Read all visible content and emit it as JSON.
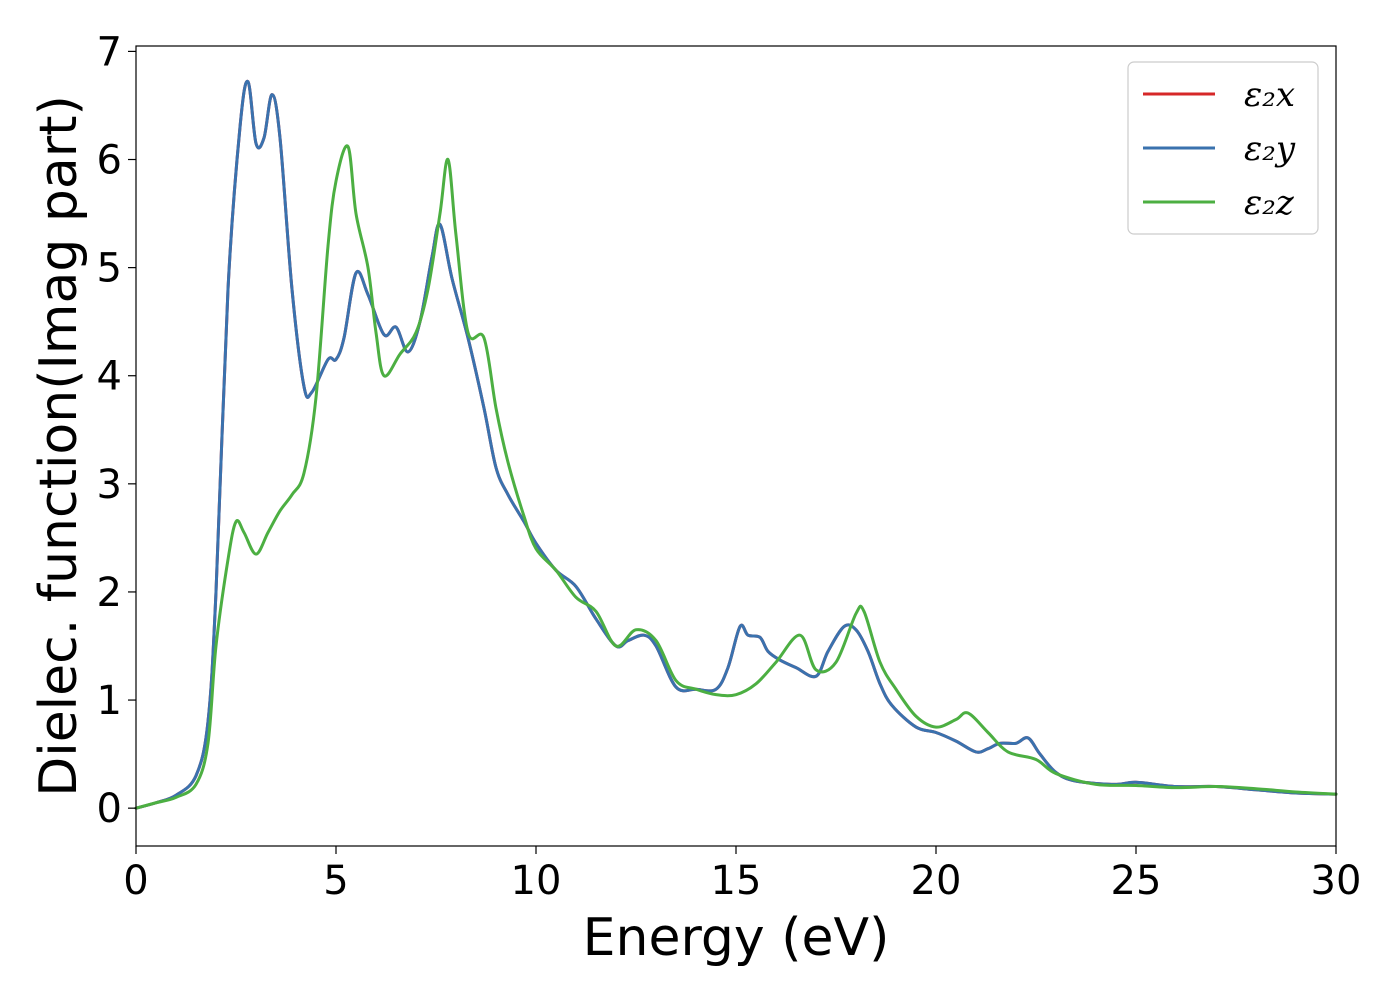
{
  "chart_data": {
    "type": "line",
    "xlabel": "Energy (eV)",
    "ylabel": "Dielec. function(Imag part)",
    "xlim": [
      0,
      30
    ],
    "ylim": [
      -0.35,
      7.05
    ],
    "xticks": [
      "0",
      "5",
      "10",
      "15",
      "20",
      "25",
      "30"
    ],
    "yticks": [
      "0",
      "1",
      "2",
      "3",
      "4",
      "5",
      "6",
      "7"
    ],
    "grid": false,
    "legend": "top-right",
    "series": [
      {
        "name": "ε₂x",
        "color": "#d62728",
        "x": [
          0,
          0.5,
          1.0,
          1.5,
          1.8,
          2.0,
          2.3,
          2.6,
          2.8,
          3.0,
          3.2,
          3.4,
          3.6,
          3.9,
          4.2,
          4.4,
          4.8,
          5.0,
          5.2,
          5.5,
          5.8,
          6.2,
          6.5,
          6.8,
          7.1,
          7.4,
          7.6,
          7.9,
          8.3,
          8.7,
          9.0,
          9.3,
          9.7,
          10.0,
          10.5,
          11.0,
          11.5,
          12.0,
          12.3,
          12.7,
          13.0,
          13.5,
          14.0,
          14.5,
          14.8,
          15.1,
          15.3,
          15.6,
          15.8,
          16.1,
          16.5,
          17.0,
          17.3,
          17.7,
          18.0,
          18.3,
          18.6,
          18.9,
          19.5,
          20.0,
          20.5,
          21.0,
          21.3,
          21.6,
          22.0,
          22.3,
          22.6,
          23.0,
          23.5,
          24.5,
          25.0,
          26.0,
          27.0,
          28.0,
          29.0,
          30.0
        ],
        "values": [
          0.0,
          0.05,
          0.12,
          0.3,
          0.8,
          2.0,
          4.8,
          6.3,
          6.72,
          6.15,
          6.2,
          6.6,
          6.2,
          4.8,
          3.9,
          3.85,
          4.15,
          4.15,
          4.35,
          4.95,
          4.75,
          4.38,
          4.45,
          4.22,
          4.5,
          5.1,
          5.4,
          4.9,
          4.35,
          3.7,
          3.15,
          2.9,
          2.65,
          2.45,
          2.2,
          2.05,
          1.75,
          1.5,
          1.55,
          1.6,
          1.5,
          1.12,
          1.1,
          1.1,
          1.3,
          1.68,
          1.6,
          1.58,
          1.45,
          1.37,
          1.3,
          1.22,
          1.45,
          1.68,
          1.65,
          1.45,
          1.15,
          0.95,
          0.75,
          0.7,
          0.62,
          0.52,
          0.55,
          0.6,
          0.6,
          0.65,
          0.5,
          0.33,
          0.25,
          0.22,
          0.24,
          0.2,
          0.2,
          0.17,
          0.14,
          0.13
        ]
      },
      {
        "name": "ε₂y",
        "color": "#3a72ae",
        "x": [
          0,
          0.5,
          1.0,
          1.5,
          1.8,
          2.0,
          2.3,
          2.6,
          2.8,
          3.0,
          3.2,
          3.4,
          3.6,
          3.9,
          4.2,
          4.4,
          4.8,
          5.0,
          5.2,
          5.5,
          5.8,
          6.2,
          6.5,
          6.8,
          7.1,
          7.4,
          7.6,
          7.9,
          8.3,
          8.7,
          9.0,
          9.3,
          9.7,
          10.0,
          10.5,
          11.0,
          11.5,
          12.0,
          12.3,
          12.7,
          13.0,
          13.5,
          14.0,
          14.5,
          14.8,
          15.1,
          15.3,
          15.6,
          15.8,
          16.1,
          16.5,
          17.0,
          17.3,
          17.7,
          18.0,
          18.3,
          18.6,
          18.9,
          19.5,
          20.0,
          20.5,
          21.0,
          21.3,
          21.6,
          22.0,
          22.3,
          22.6,
          23.0,
          23.5,
          24.5,
          25.0,
          26.0,
          27.0,
          28.0,
          29.0,
          30.0
        ],
        "values": [
          0.0,
          0.05,
          0.12,
          0.3,
          0.8,
          2.0,
          4.8,
          6.3,
          6.72,
          6.15,
          6.2,
          6.6,
          6.2,
          4.8,
          3.9,
          3.85,
          4.15,
          4.15,
          4.35,
          4.95,
          4.75,
          4.38,
          4.45,
          4.22,
          4.5,
          5.1,
          5.4,
          4.9,
          4.35,
          3.7,
          3.15,
          2.9,
          2.65,
          2.45,
          2.2,
          2.05,
          1.75,
          1.5,
          1.55,
          1.6,
          1.5,
          1.12,
          1.1,
          1.1,
          1.3,
          1.68,
          1.6,
          1.58,
          1.45,
          1.37,
          1.3,
          1.22,
          1.45,
          1.68,
          1.65,
          1.45,
          1.15,
          0.95,
          0.75,
          0.7,
          0.62,
          0.52,
          0.55,
          0.6,
          0.6,
          0.65,
          0.5,
          0.33,
          0.25,
          0.22,
          0.24,
          0.2,
          0.2,
          0.17,
          0.14,
          0.13
        ]
      },
      {
        "name": "ε₂z",
        "color": "#4caf42",
        "x": [
          0,
          0.5,
          1.0,
          1.5,
          1.8,
          2.0,
          2.3,
          2.5,
          2.7,
          3.0,
          3.3,
          3.6,
          3.9,
          4.2,
          4.5,
          4.8,
          5.0,
          5.3,
          5.5,
          5.8,
          6.0,
          6.2,
          6.6,
          7.0,
          7.3,
          7.6,
          7.8,
          8.0,
          8.3,
          8.7,
          9.0,
          9.3,
          9.7,
          10.0,
          10.5,
          11.0,
          11.5,
          12.0,
          12.5,
          13.0,
          13.5,
          14.0,
          14.5,
          15.0,
          15.5,
          16.0,
          16.6,
          17.0,
          17.5,
          18.0,
          18.2,
          18.6,
          19.0,
          19.5,
          20.0,
          20.5,
          20.8,
          21.3,
          21.8,
          22.5,
          23.0,
          24.0,
          25.0,
          26.0,
          27.0,
          28.0,
          29.0,
          30.0
        ],
        "values": [
          0.0,
          0.05,
          0.1,
          0.22,
          0.6,
          1.5,
          2.3,
          2.65,
          2.55,
          2.35,
          2.55,
          2.75,
          2.9,
          3.1,
          3.8,
          5.2,
          5.8,
          6.12,
          5.5,
          5.0,
          4.4,
          4.0,
          4.2,
          4.4,
          4.8,
          5.5,
          6.0,
          5.3,
          4.4,
          4.35,
          3.7,
          3.2,
          2.7,
          2.4,
          2.2,
          1.95,
          1.82,
          1.5,
          1.65,
          1.55,
          1.18,
          1.1,
          1.05,
          1.05,
          1.15,
          1.35,
          1.6,
          1.28,
          1.35,
          1.8,
          1.82,
          1.35,
          1.1,
          0.85,
          0.75,
          0.82,
          0.88,
          0.7,
          0.52,
          0.45,
          0.32,
          0.22,
          0.21,
          0.19,
          0.2,
          0.18,
          0.15,
          0.13
        ]
      }
    ]
  }
}
